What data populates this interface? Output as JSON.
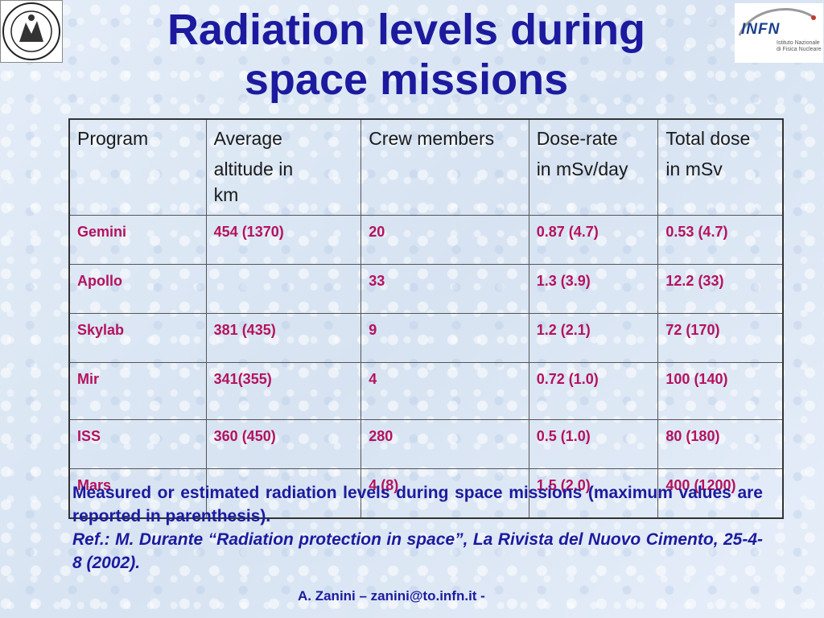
{
  "slide": {
    "title_line1": "Radiation levels during",
    "title_line2": "space missions"
  },
  "logos": {
    "left": {
      "name": "university-seal",
      "text": "SIGILL VNIVERSITATIS"
    },
    "right": {
      "name": "infn-logo",
      "word": "INFN",
      "subtitle_line1": "Istituto Nazionale",
      "subtitle_line2": "di Fisica Nucleare"
    }
  },
  "table": {
    "headers": [
      {
        "line1": "Program",
        "line2": "",
        "line3": ""
      },
      {
        "line1": "Average",
        "line2": "altitude in",
        "line3": "km"
      },
      {
        "line1": "Crew members",
        "line2": "",
        "line3": ""
      },
      {
        "line1": "Dose-rate",
        "line2": "in mSv/day",
        "line3": ""
      },
      {
        "line1": "Total dose",
        "line2": "in mSv",
        "line3": ""
      }
    ],
    "rows": [
      [
        "Gemini",
        "454 (1370)",
        "20",
        "0.87 (4.7)",
        "0.53 (4.7)"
      ],
      [
        "Apollo",
        "",
        "33",
        "1.3 (3.9)",
        "12.2 (33)"
      ],
      [
        "Skylab",
        "381 (435)",
        "9",
        "1.2 (2.1)",
        "72 (170)"
      ],
      [
        "Mir",
        "341(355)",
        "4",
        "0.72 (1.0)",
        "100 (140)"
      ],
      [
        "ISS",
        "360 (450)",
        "280",
        "0.5 (1.0)",
        "80 (180)"
      ],
      [
        "Mars",
        "",
        "4 (8)",
        "1.5 (2.0)",
        "400 (1200)"
      ]
    ]
  },
  "caption": {
    "text": "Measured or estimated radiation levels during space missions (maximum values are reported in parenthesis).",
    "ref": "Ref.: M. Durante “Radiation protection in space”, La Rivista del Nuovo Cimento, 25-4-8 (2002)."
  },
  "footer": "A. Zanini – zanini@to.infn.it -",
  "colors": {
    "title": "#1c1a9e",
    "cell_text": "#b4125e",
    "background": "#dfe9f5"
  }
}
